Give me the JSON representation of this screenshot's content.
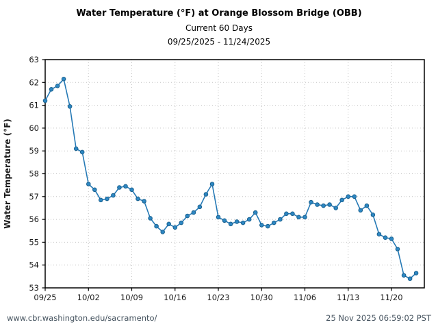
{
  "page": {
    "title": "Water Temperature (°F) at Orange Blossom Bridge (OBB)",
    "subtitle": "Current 60 Days",
    "date_range": "09/25/2025 - 11/24/2025"
  },
  "footer": {
    "url": "www.cbr.washington.edu/sacramento/",
    "timestamp": "25 Nov 2025 06:59:02 PST"
  },
  "chart_data": {
    "type": "line",
    "title": "Water Temperature (°F) at Orange Blossom Bridge (OBB)",
    "subtitle": "Current 60 Days",
    "date_range": "09/25/2025 - 11/24/2025",
    "xlabel": "",
    "ylabel": "Water Temperature (°F)",
    "ylim": [
      53,
      63
    ],
    "yticks": [
      53,
      54,
      55,
      56,
      57,
      58,
      59,
      60,
      61,
      62,
      63
    ],
    "xtick_labels": [
      "09/25",
      "10/02",
      "10/09",
      "10/16",
      "10/23",
      "10/30",
      "11/06",
      "11/13",
      "11/20"
    ],
    "xtick_days": [
      0,
      7,
      14,
      21,
      28,
      35,
      42,
      49,
      56
    ],
    "grid": true,
    "legend": "none",
    "line_color": "#2579b5",
    "marker_fill": "#2d87c3",
    "marker_edge": "#1b618e",
    "series": [
      {
        "name": "Water Temperature (°F)",
        "x": [
          "09/25",
          "09/26",
          "09/27",
          "09/28",
          "09/29",
          "09/30",
          "10/01",
          "10/02",
          "10/03",
          "10/04",
          "10/05",
          "10/06",
          "10/07",
          "10/08",
          "10/09",
          "10/10",
          "10/11",
          "10/12",
          "10/13",
          "10/14",
          "10/15",
          "10/16",
          "10/17",
          "10/18",
          "10/19",
          "10/20",
          "10/21",
          "10/22",
          "10/23",
          "10/24",
          "10/25",
          "10/26",
          "10/27",
          "10/28",
          "10/29",
          "10/30",
          "10/31",
          "11/01",
          "11/02",
          "11/03",
          "11/04",
          "11/05",
          "11/06",
          "11/07",
          "11/08",
          "11/09",
          "11/10",
          "11/11",
          "11/12",
          "11/13",
          "11/14",
          "11/15",
          "11/16",
          "11/17",
          "11/18",
          "11/19",
          "11/20",
          "11/21",
          "11/22",
          "11/23",
          "11/24"
        ],
        "values": [
          61.2,
          61.7,
          61.85,
          62.15,
          60.95,
          59.1,
          58.95,
          57.55,
          57.3,
          56.85,
          56.9,
          57.05,
          57.4,
          57.45,
          57.3,
          56.9,
          56.8,
          56.05,
          55.7,
          55.45,
          55.8,
          55.65,
          55.85,
          56.15,
          56.3,
          56.55,
          57.1,
          57.55,
          56.1,
          55.95,
          55.8,
          55.9,
          55.85,
          56.0,
          56.3,
          55.75,
          55.7,
          55.85,
          56.0,
          56.25,
          56.25,
          56.1,
          56.1,
          56.75,
          56.65,
          56.6,
          56.65,
          56.5,
          56.85,
          57.0,
          57.0,
          56.4,
          56.6,
          56.2,
          55.35,
          55.2,
          55.15,
          54.7,
          53.55,
          53.4,
          53.65
        ]
      }
    ]
  }
}
